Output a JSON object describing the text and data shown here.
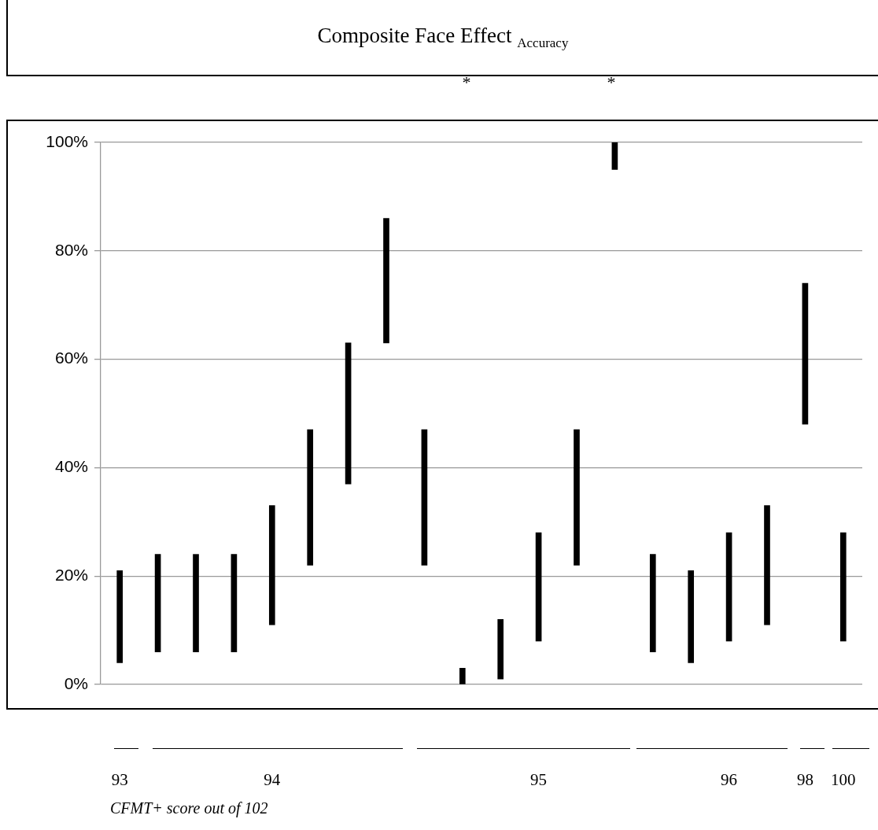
{
  "chart_data": {
    "type": "bar",
    "title": "Composite Face Effect $_{Accuracy}$",
    "xlabel": "CFMT+ score out of 102",
    "categories": [
      "93",
      null,
      null,
      null,
      "94",
      null,
      null,
      null,
      null,
      null,
      null,
      "95",
      null,
      null,
      null,
      null,
      "96",
      null,
      "98",
      "100"
    ],
    "base": [
      4,
      6,
      6,
      6,
      11,
      22,
      37,
      63,
      22,
      0,
      1,
      8,
      22,
      95,
      6,
      4,
      8,
      11,
      48,
      8
    ],
    "values": [
      17,
      18,
      18,
      18,
      22,
      25,
      26,
      23,
      25,
      3,
      11,
      20,
      25,
      5,
      18,
      17,
      20,
      22,
      26,
      20
    ],
    "color": "#000000",
    "ylim": [
      0,
      100
    ],
    "yticks": [
      {
        "value": 0,
        "label": "0%"
      },
      {
        "value": 20,
        "label": "20%"
      },
      {
        "value": 40,
        "label": "40%"
      },
      {
        "value": 60,
        "label": "60%"
      },
      {
        "value": 80,
        "label": "80%"
      },
      {
        "value": 100,
        "label": "100%"
      }
    ],
    "grid": "y",
    "legend": false,
    "annotations": [
      "*",
      "*"
    ]
  }
}
